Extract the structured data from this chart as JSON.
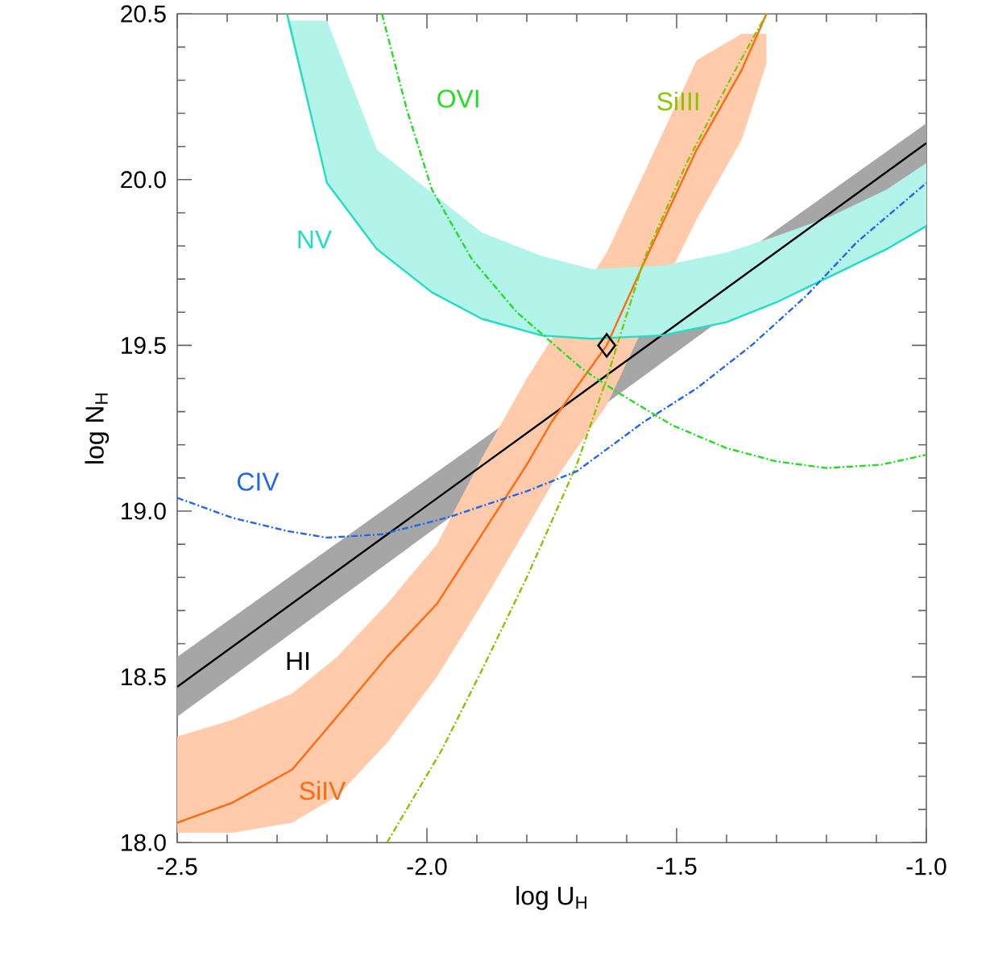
{
  "chart_data": {
    "type": "line",
    "xlabel": "log U$_{H}$",
    "ylabel": "log N$_{H}$",
    "xlim": [
      -2.5,
      -1.0
    ],
    "ylim": [
      18.0,
      20.5
    ],
    "xticks": [
      -2.5,
      {
        "value": -2.0,
        "label": "-2.0"
      },
      -1.5,
      {
        "value": -1.0,
        "label": "-1.0"
      }
    ],
    "yticks": [
      {
        "value": 18.0,
        "label": "18.0"
      },
      18.5,
      {
        "value": 19.0,
        "label": "19.0"
      },
      19.5,
      {
        "value": 20.0,
        "label": "20.0"
      },
      20.5
    ],
    "series": [
      {
        "name": "HI",
        "color": "#000000",
        "line_style": "solid",
        "x": [
          -2.5,
          -1.0
        ],
        "values": [
          18.47,
          20.11
        ],
        "lower": [
          18.38,
          20.03
        ],
        "upper": [
          18.56,
          20.17
        ]
      },
      {
        "name": "SiIV",
        "color": "#ff6a10",
        "line_style": "solid",
        "x": [
          -2.5,
          -2.39,
          -2.27,
          -2.18,
          -2.08,
          -1.98,
          -1.89,
          -1.8,
          -1.75,
          -1.64,
          -1.565,
          -1.46,
          -1.37,
          -1.32
        ],
        "values": [
          18.06,
          18.12,
          18.22,
          18.38,
          18.56,
          18.72,
          18.93,
          19.14,
          19.27,
          19.5,
          19.75,
          20.09,
          20.33,
          20.5
        ],
        "lower": [
          18.03,
          18.03,
          18.06,
          18.14,
          18.3,
          18.5,
          18.72,
          18.95,
          19.08,
          19.32,
          19.56,
          19.88,
          20.12,
          20.35
        ],
        "upper": [
          18.32,
          18.37,
          18.45,
          18.56,
          18.72,
          18.9,
          19.16,
          19.4,
          19.52,
          19.78,
          20.02,
          20.36,
          20.44,
          20.44
        ]
      },
      {
        "name": "NV",
        "color": "#22ddc4",
        "line_style": "solid",
        "x": [
          -2.28,
          -2.2,
          -2.1,
          -1.99,
          -1.89,
          -1.77,
          -1.67,
          -1.53,
          -1.4,
          -1.3,
          -1.19,
          -1.08,
          -1.0
        ],
        "values": [
          20.5,
          19.99,
          19.79,
          19.66,
          19.58,
          19.53,
          19.52,
          19.53,
          19.57,
          19.63,
          19.71,
          19.79,
          19.86
        ],
        "lower": [
          20.48,
          19.99,
          19.79,
          19.66,
          19.58,
          19.53,
          19.52,
          19.53,
          19.57,
          19.63,
          19.71,
          19.79,
          19.86
        ],
        "upper": [
          20.48,
          20.48,
          20.09,
          19.96,
          19.84,
          19.77,
          19.73,
          19.74,
          19.78,
          19.83,
          19.89,
          19.97,
          20.05
        ]
      },
      {
        "name": "OVI",
        "color": "#22dd22",
        "line_style": "dashdotted",
        "x": [
          -2.09,
          -2.04,
          -1.99,
          -1.91,
          -1.82,
          -1.69,
          -1.62,
          -1.51,
          -1.4,
          -1.3,
          -1.2,
          -1.09,
          -1.0
        ],
        "values": [
          20.5,
          20.21,
          19.97,
          19.76,
          19.6,
          19.43,
          19.36,
          19.26,
          19.19,
          19.15,
          19.13,
          19.14,
          19.17
        ]
      },
      {
        "name": "SiIII",
        "color": "#88c400",
        "line_style": "dashdotted",
        "x": [
          -2.08,
          -1.97,
          -1.89,
          -1.8,
          -1.7,
          -1.64,
          -1.565,
          -1.48,
          -1.39,
          -1.32
        ],
        "values": [
          18.0,
          18.28,
          18.52,
          18.8,
          19.14,
          19.4,
          19.76,
          20.05,
          20.31,
          20.5
        ]
      },
      {
        "name": "CIV",
        "color": "#2266ee",
        "line_style": "dashdotted",
        "x": [
          -2.5,
          -2.39,
          -2.28,
          -2.2,
          -2.09,
          -1.96,
          -1.8,
          -1.7,
          -1.565,
          -1.46,
          -1.35,
          -1.24,
          -1.14,
          -1.0
        ],
        "values": [
          19.04,
          18.98,
          18.94,
          18.92,
          18.93,
          18.98,
          19.06,
          19.12,
          19.27,
          19.37,
          19.5,
          19.65,
          19.81,
          19.99
        ]
      },
      {
        "type": "scatter",
        "marker": "diamond",
        "color": "#000000",
        "x": [
          -1.64
        ],
        "values": [
          19.5
        ]
      }
    ]
  }
}
